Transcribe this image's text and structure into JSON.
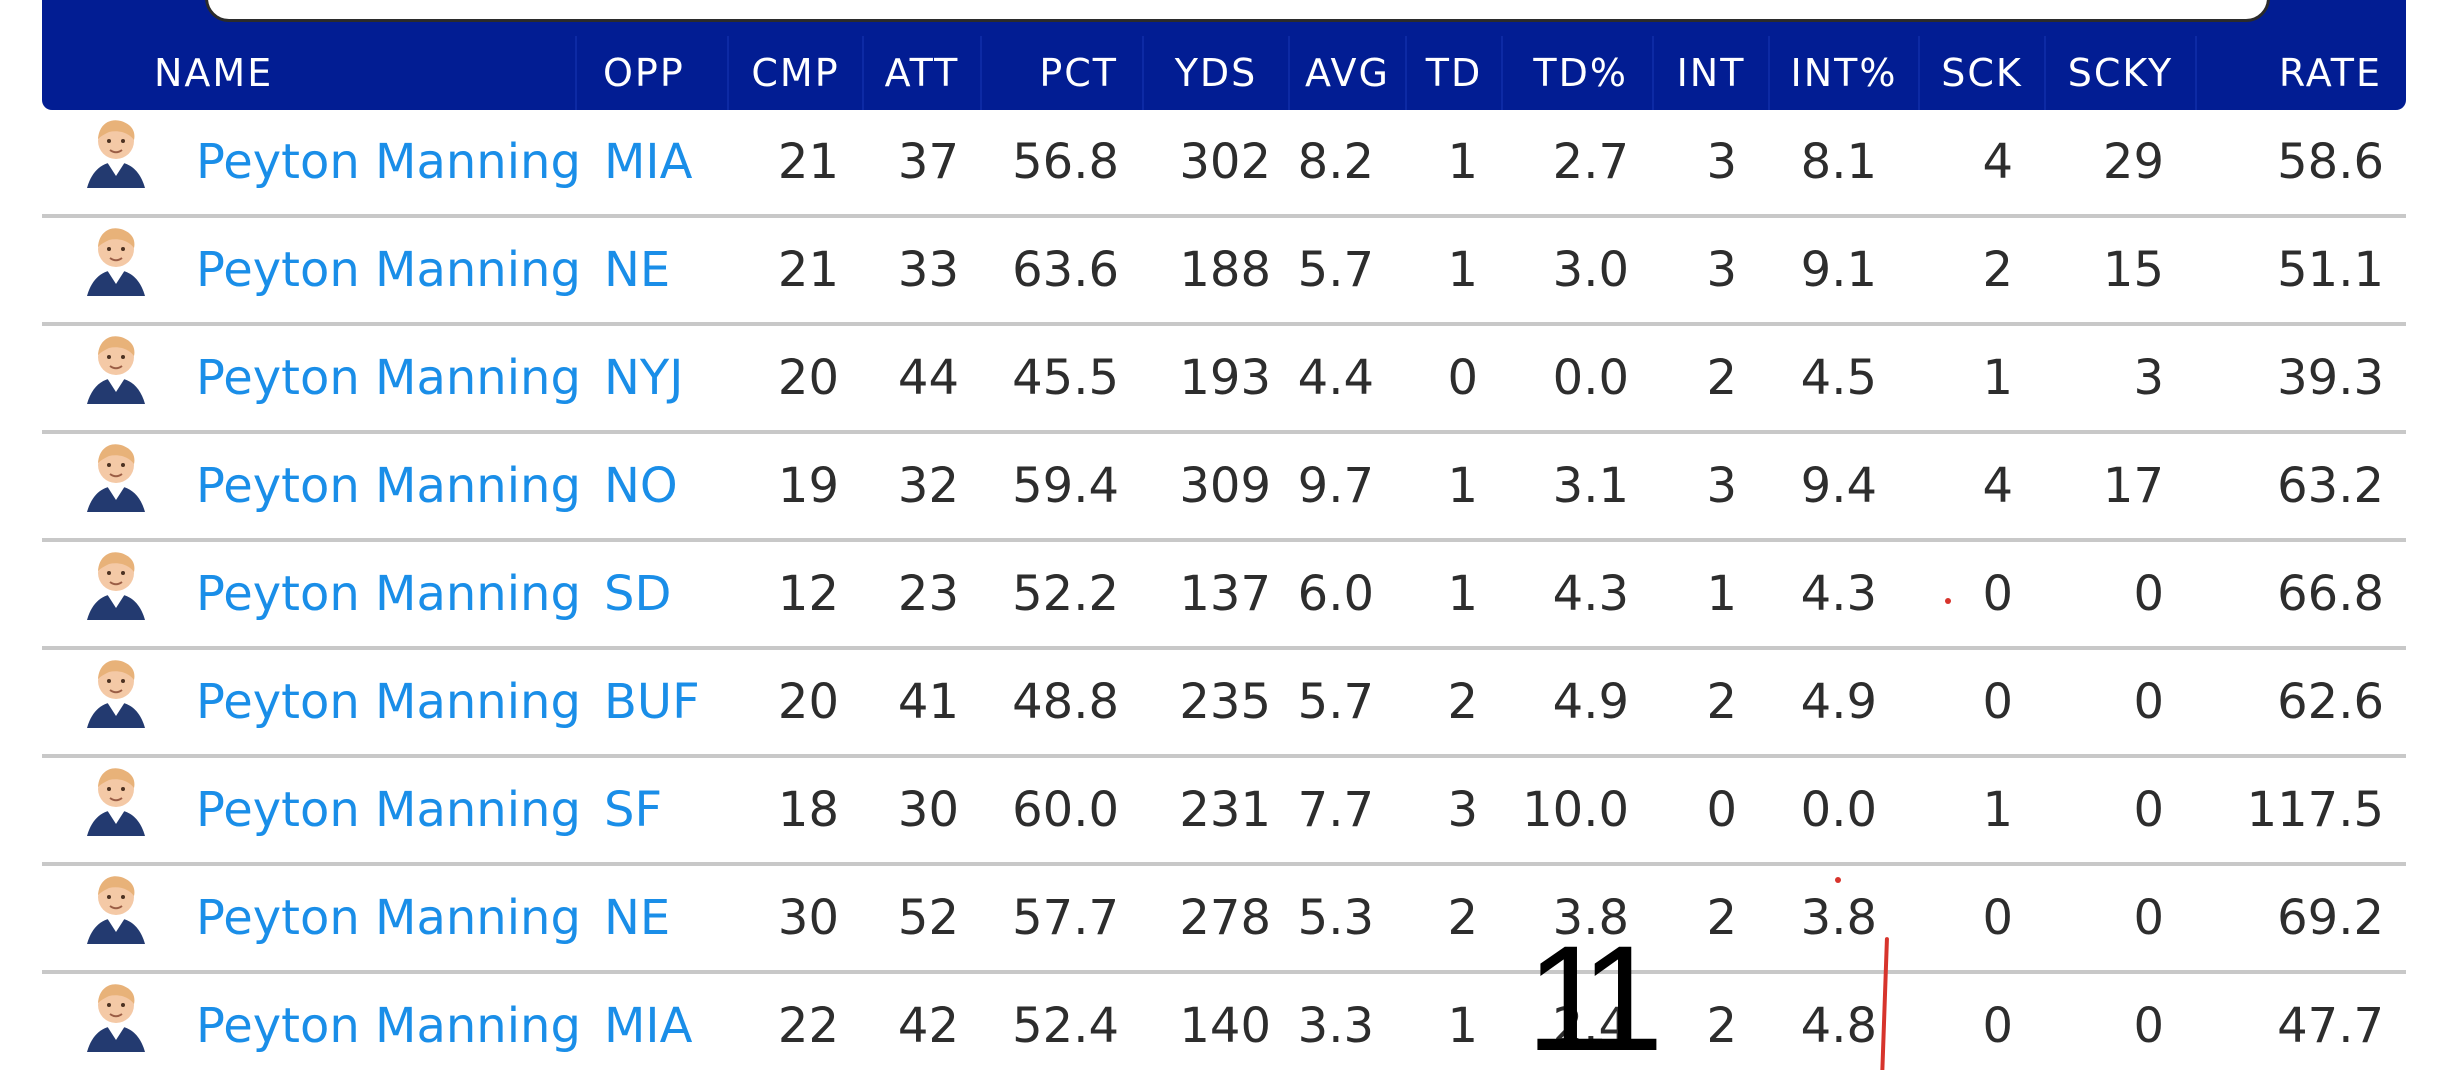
{
  "table": {
    "columns": [
      "NAME",
      "OPP",
      "CMP",
      "ATT",
      "PCT",
      "YDS",
      "AVG",
      "TD",
      "TD%",
      "INT",
      "INT%",
      "SCK",
      "SCKY",
      "RATE"
    ],
    "rows": [
      {
        "name": "Peyton Manning",
        "opp": "MIA",
        "cmp": "21",
        "att": "37",
        "pct": "56.8",
        "yds": "302",
        "avg": "8.2",
        "td": "1",
        "td_pct": "2.7",
        "int": "3",
        "int_pct": "8.1",
        "sck": "4",
        "scky": "29",
        "rate": "58.6"
      },
      {
        "name": "Peyton Manning",
        "opp": "NE",
        "cmp": "21",
        "att": "33",
        "pct": "63.6",
        "yds": "188",
        "avg": "5.7",
        "td": "1",
        "td_pct": "3.0",
        "int": "3",
        "int_pct": "9.1",
        "sck": "2",
        "scky": "15",
        "rate": "51.1"
      },
      {
        "name": "Peyton Manning",
        "opp": "NYJ",
        "cmp": "20",
        "att": "44",
        "pct": "45.5",
        "yds": "193",
        "avg": "4.4",
        "td": "0",
        "td_pct": "0.0",
        "int": "2",
        "int_pct": "4.5",
        "sck": "1",
        "scky": "3",
        "rate": "39.3"
      },
      {
        "name": "Peyton Manning",
        "opp": "NO",
        "cmp": "19",
        "att": "32",
        "pct": "59.4",
        "yds": "309",
        "avg": "9.7",
        "td": "1",
        "td_pct": "3.1",
        "int": "3",
        "int_pct": "9.4",
        "sck": "4",
        "scky": "17",
        "rate": "63.2"
      },
      {
        "name": "Peyton Manning",
        "opp": "SD",
        "cmp": "12",
        "att": "23",
        "pct": "52.2",
        "yds": "137",
        "avg": "6.0",
        "td": "1",
        "td_pct": "4.3",
        "int": "1",
        "int_pct": "4.3",
        "sck": "0",
        "scky": "0",
        "rate": "66.8"
      },
      {
        "name": "Peyton Manning",
        "opp": "BUF",
        "cmp": "20",
        "att": "41",
        "pct": "48.8",
        "yds": "235",
        "avg": "5.7",
        "td": "2",
        "td_pct": "4.9",
        "int": "2",
        "int_pct": "4.9",
        "sck": "0",
        "scky": "0",
        "rate": "62.6"
      },
      {
        "name": "Peyton Manning",
        "opp": "SF",
        "cmp": "18",
        "att": "30",
        "pct": "60.0",
        "yds": "231",
        "avg": "7.7",
        "td": "3",
        "td_pct": "10.0",
        "int": "0",
        "int_pct": "0.0",
        "sck": "1",
        "scky": "0",
        "rate": "117.5"
      },
      {
        "name": "Peyton Manning",
        "opp": "NE",
        "cmp": "30",
        "att": "52",
        "pct": "57.7",
        "yds": "278",
        "avg": "5.3",
        "td": "2",
        "td_pct": "3.8",
        "int": "2",
        "int_pct": "3.8",
        "sck": "0",
        "scky": "0",
        "rate": "69.2"
      },
      {
        "name": "Peyton Manning",
        "opp": "MIA",
        "cmp": "22",
        "att": "42",
        "pct": "52.4",
        "yds": "140",
        "avg": "3.3",
        "td": "1",
        "td_pct": "2.4",
        "int": "2",
        "int_pct": "4.8",
        "sck": "0",
        "scky": "0",
        "rate": "47.7"
      }
    ]
  },
  "annotation": {
    "overlay_text": "11"
  },
  "icons": {
    "player_avatar": "player-avatar-icon"
  },
  "colors": {
    "header_bg": "#021d93",
    "link": "#1a8ee8",
    "text": "#2d2d2d",
    "row_divider": "#c8c8c8",
    "annotation_red": "#d7342c"
  }
}
